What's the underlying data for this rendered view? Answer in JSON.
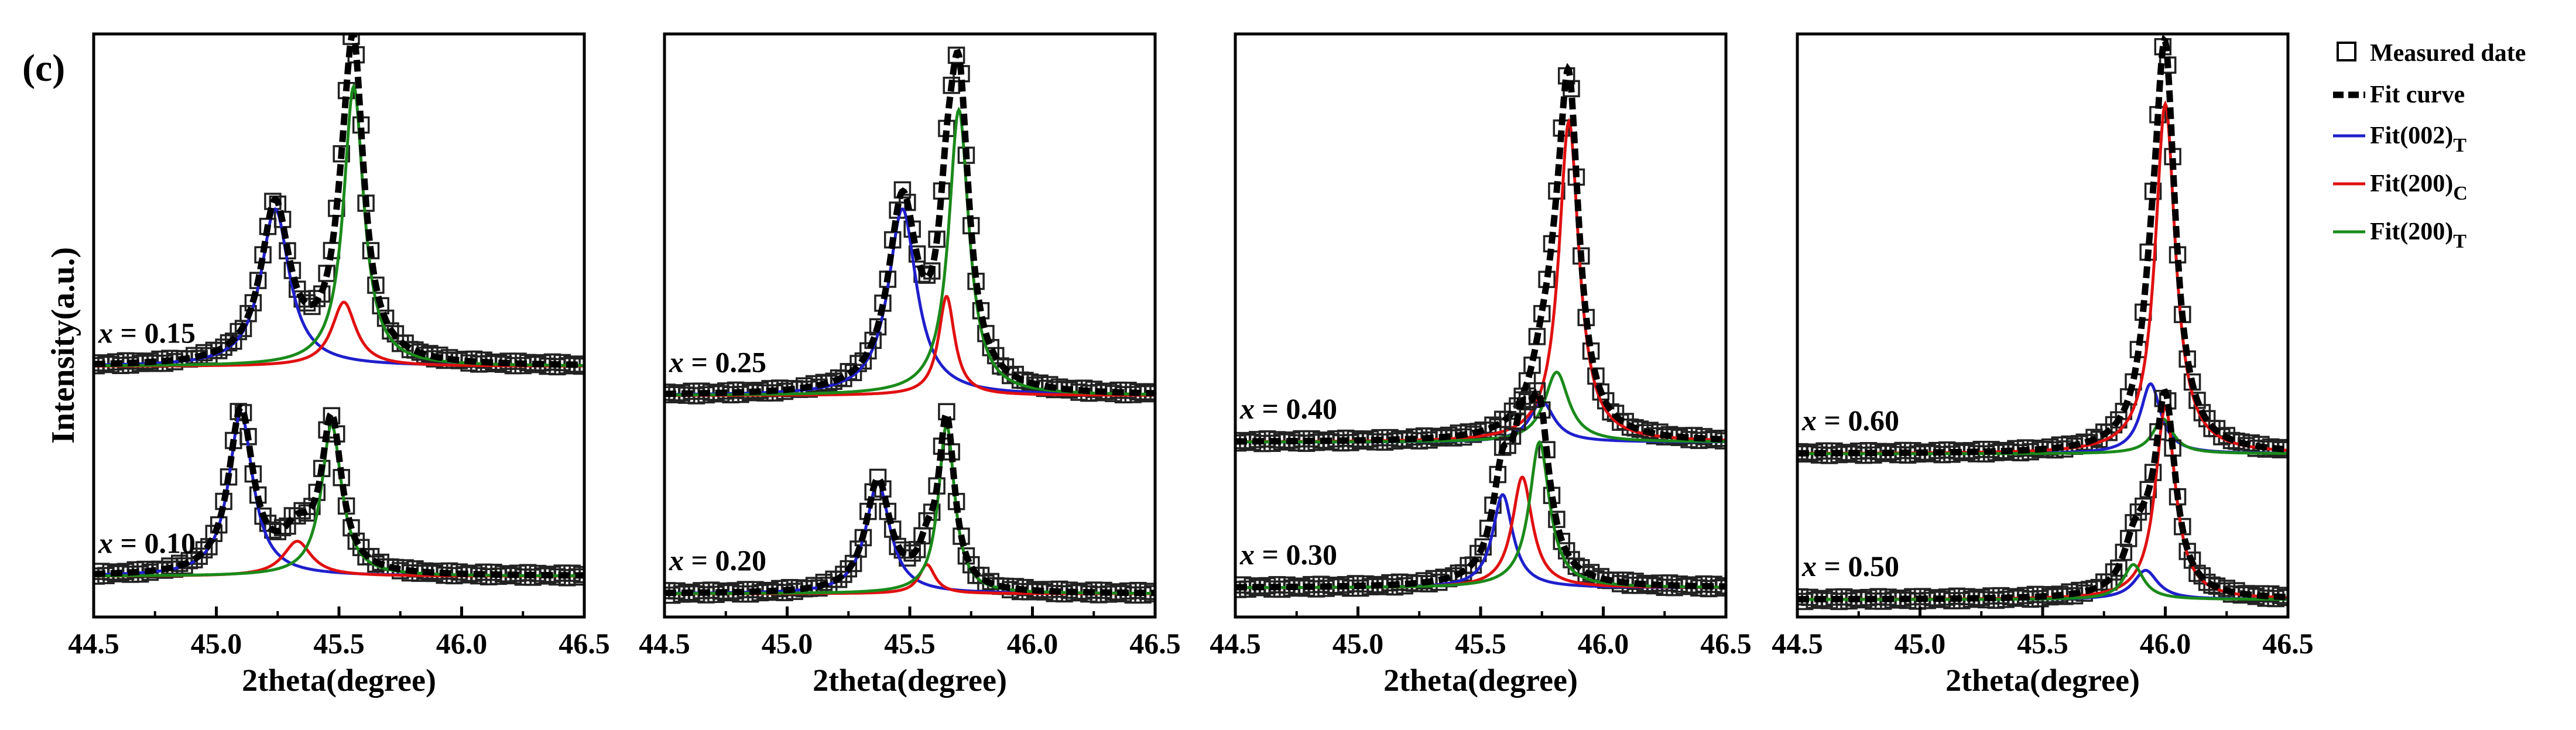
{
  "figure": {
    "label": "(c)",
    "ylabel": "Intensity(a.u.)",
    "legend": {
      "measured": "Measured date",
      "fit": "Fit curve",
      "t002": {
        "main": "Fit(002)",
        "sub": "T"
      },
      "c200": {
        "main": "Fit(200)",
        "sub": "C"
      },
      "t200": {
        "main": "Fit(200)",
        "sub": "T"
      }
    },
    "colors": {
      "t002": "#1f1fcc",
      "c200": "#e01010",
      "t200": "#1a8a1a",
      "fit": "#000000",
      "axis": "#000000"
    }
  },
  "chart_data": [
    {
      "type": "line",
      "xlabel": "2theta(degree)",
      "ylabel": "Intensity(a.u.)",
      "xlim": [
        44.5,
        46.5
      ],
      "xticks": [
        "44.5",
        "45.0",
        "45.5",
        "46.0",
        "46.5"
      ],
      "ylim": [
        0,
        1
      ],
      "traces": [
        {
          "label": "x = 0.15",
          "baseline": 0.43,
          "peaks": {
            "t002": [
              45.24,
              0.27,
              0.07
            ],
            "c200": [
              45.52,
              0.11,
              0.06
            ],
            "t200": [
              45.56,
              0.48,
              0.05
            ]
          }
        },
        {
          "label": "x = 0.10",
          "baseline": 0.07,
          "peaks": {
            "t002": [
              45.1,
              0.28,
              0.06
            ],
            "c200": [
              45.33,
              0.06,
              0.07
            ],
            "t200": [
              45.47,
              0.26,
              0.05
            ]
          }
        }
      ]
    },
    {
      "type": "line",
      "xlabel": "2theta(degree)",
      "ylabel": "Intensity(a.u.)",
      "xlim": [
        44.5,
        46.5
      ],
      "xticks": [
        "44.5",
        "45.0",
        "45.5",
        "46.0",
        "46.5"
      ],
      "ylim": [
        0,
        1
      ],
      "traces": [
        {
          "label": "x = 0.25",
          "baseline": 0.38,
          "peaks": {
            "t002": [
              45.47,
              0.32,
              0.07
            ],
            "c200": [
              45.65,
              0.17,
              0.04
            ],
            "t200": [
              45.7,
              0.49,
              0.05
            ]
          }
        },
        {
          "label": "x = 0.20",
          "baseline": 0.04,
          "peaks": {
            "t002": [
              45.37,
              0.19,
              0.06
            ],
            "c200": [
              45.57,
              0.05,
              0.04
            ],
            "t200": [
              45.65,
              0.29,
              0.04
            ]
          }
        }
      ]
    },
    {
      "type": "line",
      "xlabel": "2theta(degree)",
      "ylabel": "Intensity(a.u.)",
      "xlim": [
        44.5,
        46.5
      ],
      "xticks": [
        "44.5",
        "45.0",
        "45.5",
        "46.0",
        "46.5"
      ],
      "ylim": [
        0,
        1
      ],
      "traces": [
        {
          "label": "x = 0.40",
          "baseline": 0.3,
          "peaks": {
            "t002": [
              45.75,
              0.07,
              0.06
            ],
            "c200": [
              45.86,
              0.55,
              0.05
            ],
            "t200": [
              45.81,
              0.12,
              0.06
            ]
          }
        },
        {
          "label": "x = 0.30",
          "baseline": 0.05,
          "peaks": {
            "t002": [
              45.59,
              0.16,
              0.05
            ],
            "c200": [
              45.67,
              0.19,
              0.05
            ],
            "t200": [
              45.74,
              0.25,
              0.05
            ]
          }
        }
      ]
    },
    {
      "type": "line",
      "xlabel": "2theta(degree)",
      "ylabel": "Intensity(a.u.)",
      "xlim": [
        44.5,
        46.5
      ],
      "xticks": [
        "44.5",
        "45.0",
        "45.5",
        "46.0",
        "46.5"
      ],
      "ylim": [
        0,
        1
      ],
      "traces": [
        {
          "label": "x = 0.60",
          "baseline": 0.28,
          "peaks": {
            "t002": [
              45.94,
              0.12,
              0.05
            ],
            "c200": [
              46.0,
              0.6,
              0.05
            ],
            "t200": [
              45.99,
              0.06,
              0.05
            ]
          }
        },
        {
          "label": "x = 0.50",
          "baseline": 0.03,
          "peaks": {
            "t002": [
              45.92,
              0.05,
              0.06
            ],
            "c200": [
              46.0,
              0.33,
              0.05
            ],
            "t200": [
              45.87,
              0.06,
              0.05
            ]
          }
        }
      ]
    }
  ]
}
